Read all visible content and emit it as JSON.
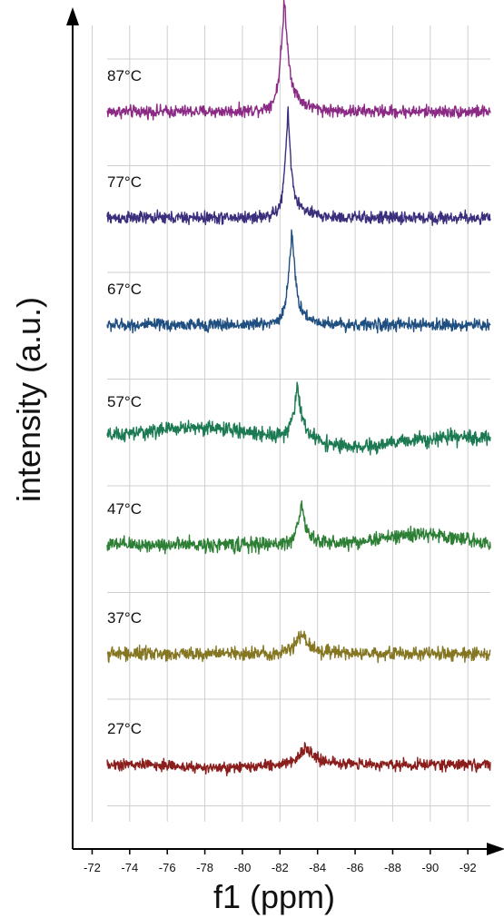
{
  "chart_data": {
    "type": "line",
    "xlabel": "f1 (ppm)",
    "ylabel": "intensity (a.u.)",
    "x_ticks": [
      "-72",
      "-74",
      "-76",
      "-78",
      "-80",
      "-82",
      "-84",
      "-86",
      "-88",
      "-90",
      "-92"
    ],
    "xlim": [
      -72.8,
      -93.2
    ],
    "x_reversed": true,
    "grid": true,
    "series": [
      {
        "name": "87°C",
        "color": "#8b2a85",
        "peak": {
          "x": -82.2,
          "height": 0.86,
          "width": 0.22,
          "tail": 0.25
        },
        "broad": [],
        "noise": 0.06
      },
      {
        "name": "77°C",
        "color": "#3a2f7c",
        "peak": {
          "x": -82.4,
          "height": 0.88,
          "width": 0.17,
          "tail": 0.18
        },
        "broad": [],
        "noise": 0.06
      },
      {
        "name": "67°C",
        "color": "#1f4f80",
        "peak": {
          "x": -82.6,
          "height": 0.78,
          "width": 0.2,
          "tail": 0.15
        },
        "broad": [],
        "noise": 0.06
      },
      {
        "name": "57°C",
        "color": "#1c7a52",
        "peak": {
          "x": -82.9,
          "height": 0.42,
          "width": 0.22,
          "tail": 0.1
        },
        "broad": [
          {
            "x": -77.5,
            "height": 0.1,
            "width": 3.5
          },
          {
            "x": -86.0,
            "height": -0.1,
            "width": 2.5
          }
        ],
        "noise": 0.07
      },
      {
        "name": "47°C",
        "color": "#2c7f34",
        "peak": {
          "x": -83.1,
          "height": 0.32,
          "width": 0.22,
          "tail": 0.08
        },
        "broad": [
          {
            "x": -89.5,
            "height": 0.1,
            "width": 3.0
          }
        ],
        "noise": 0.07
      },
      {
        "name": "37°C",
        "color": "#857622",
        "peak": {
          "x": -83.1,
          "height": 0.17,
          "width": 0.35,
          "tail": 0.05
        },
        "broad": [],
        "noise": 0.065
      },
      {
        "name": "27°C",
        "color": "#8a1e1c",
        "peak": {
          "x": -83.3,
          "height": 0.12,
          "width": 0.5,
          "tail": 0.05
        },
        "broad": [
          {
            "x": -79.0,
            "height": -0.04,
            "width": 2.5
          }
        ],
        "noise": 0.055
      }
    ]
  }
}
